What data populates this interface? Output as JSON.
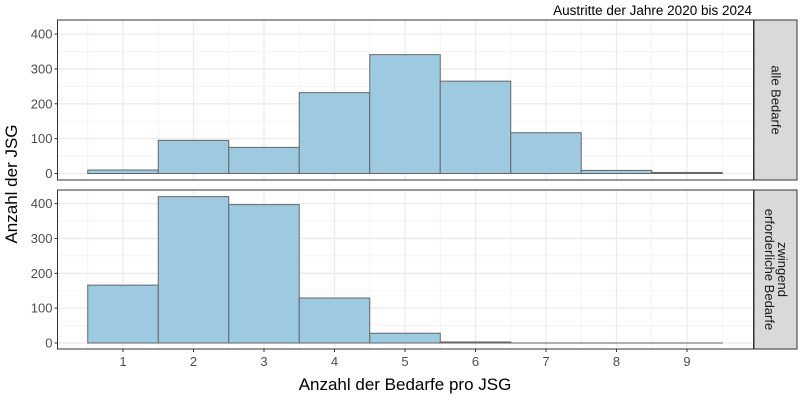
{
  "chart_data": {
    "type": "bar",
    "subtype": "histogram-faceted",
    "title": "Austritte der Jahre 2020 bis 2024",
    "xlabel": "Anzahl der Bedarfe pro JSG",
    "ylabel": "Anzahl der JSG",
    "categories": [
      1,
      2,
      3,
      4,
      5,
      6,
      7,
      8,
      9
    ],
    "x_ticks": [
      "1",
      "2",
      "3",
      "4",
      "5",
      "6",
      "7",
      "8",
      "9"
    ],
    "y_ticks": [
      "0",
      "100",
      "200",
      "300",
      "400"
    ],
    "ylim": [
      0,
      420
    ],
    "xlim": [
      0.05,
      9.95
    ],
    "grid": true,
    "bar_color": "#9ecae1",
    "bar_edge_color": "#666666",
    "series": [
      {
        "name": "alle Bedarfe",
        "values": [
          10,
          95,
          75,
          232,
          341,
          265,
          117,
          9,
          3
        ]
      },
      {
        "name": "zwingend erforderliche Bedarfe",
        "values": [
          166,
          420,
          397,
          129,
          28,
          3,
          0,
          0,
          0
        ]
      }
    ],
    "facets": [
      {
        "strip_lines": [
          "alle Bedarfe"
        ]
      },
      {
        "strip_lines": [
          "zwingend",
          "erforderliche Bedarfe"
        ]
      }
    ]
  }
}
